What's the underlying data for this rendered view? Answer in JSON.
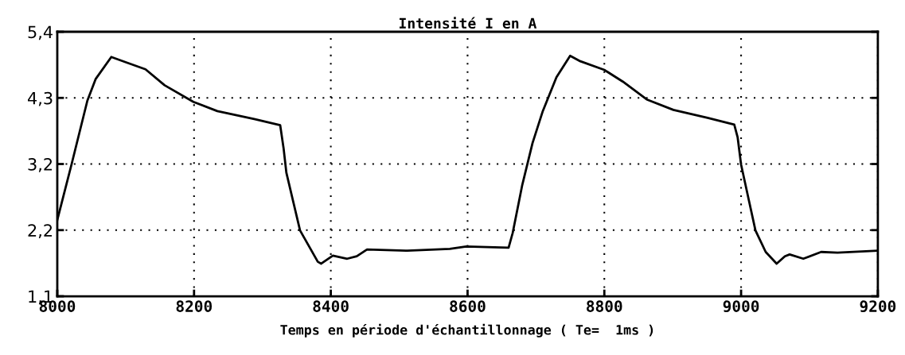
{
  "chart_data": {
    "type": "line",
    "title": "Intensité I en A",
    "xlabel": "Temps en période d'échantillonnage ( Te=  1ms )",
    "xlim": [
      8000,
      9200
    ],
    "xticks": [
      8000,
      8200,
      8400,
      8600,
      8800,
      9000,
      9200
    ],
    "ylim": [
      1.1,
      5.4
    ],
    "yticks": [
      {
        "value": 1.1,
        "label": "1,1"
      },
      {
        "value": 2.175,
        "label": "2,2"
      },
      {
        "value": 3.25,
        "label": "3,2"
      },
      {
        "value": 4.325,
        "label": "4,3"
      },
      {
        "value": 5.4,
        "label": "5,4"
      }
    ],
    "grid": true,
    "marker": "none",
    "line_style": "solid",
    "series": [
      {
        "color": "#000000",
        "x": [
          8000,
          8021,
          8044,
          8056,
          8079,
          8099,
          8129,
          8157,
          8199,
          8234,
          8288,
          8326,
          8331,
          8335,
          8355,
          8381,
          8386,
          8403,
          8424,
          8438,
          8453,
          8512,
          8574,
          8598,
          8660,
          8666,
          8680,
          8695,
          8710,
          8730,
          8750,
          8765,
          8800,
          8827,
          8862,
          8901,
          8951,
          8990,
          8995,
          9000,
          9021,
          9036,
          9052,
          9064,
          9071,
          9091,
          9117,
          9141,
          9200
        ],
        "values": [
          2.34,
          3.25,
          4.28,
          4.63,
          4.99,
          4.91,
          4.79,
          4.53,
          4.26,
          4.11,
          3.98,
          3.88,
          3.5,
          3.11,
          2.17,
          1.66,
          1.63,
          1.76,
          1.71,
          1.75,
          1.86,
          1.84,
          1.87,
          1.91,
          1.89,
          2.13,
          2.91,
          3.59,
          4.11,
          4.66,
          5.01,
          4.92,
          4.78,
          4.59,
          4.3,
          4.13,
          4.0,
          3.89,
          3.68,
          3.24,
          2.17,
          1.82,
          1.63,
          1.75,
          1.78,
          1.71,
          1.82,
          1.81,
          1.84
        ]
      }
    ]
  }
}
